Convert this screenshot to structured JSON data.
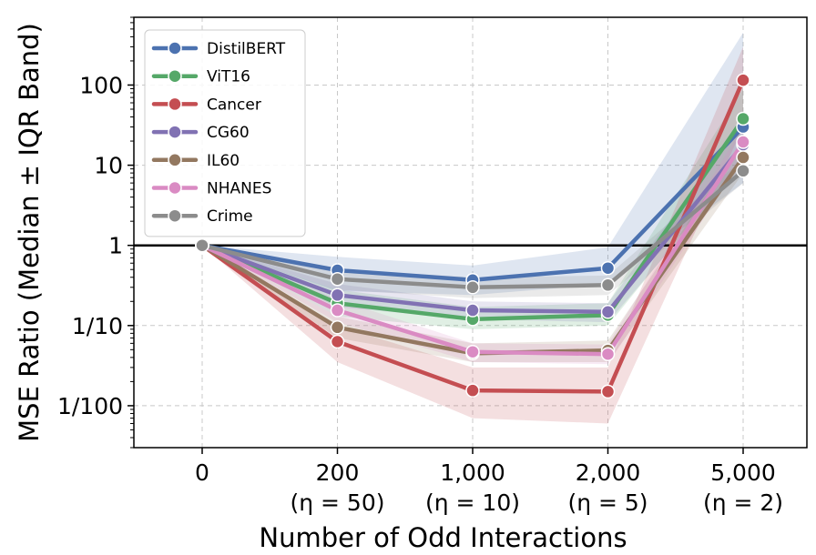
{
  "chart_data": {
    "type": "line",
    "xlabel": "Number of Odd Interactions",
    "ylabel": "MSE Ratio (Median ± IQR Band)",
    "y_scale": "log10",
    "ylim": [
      0.003,
      700
    ],
    "grid": true,
    "legend_position": "top-left",
    "reference_line": 1,
    "categories": [
      {
        "label": "0",
        "sublabel": ""
      },
      {
        "label": "200",
        "sublabel": "(η = 50)"
      },
      {
        "label": "1,000",
        "sublabel": "(η = 10)"
      },
      {
        "label": "2,000",
        "sublabel": "(η = 5)"
      },
      {
        "label": "5,000",
        "sublabel": "(η = 2)"
      }
    ],
    "y_ticks": [
      {
        "value": 100,
        "label": "100"
      },
      {
        "value": 10,
        "label": "10"
      },
      {
        "value": 1,
        "label": "1"
      },
      {
        "value": 0.1,
        "label": "1/10"
      },
      {
        "value": 0.01,
        "label": "1/100"
      }
    ],
    "series": [
      {
        "name": "DistilBERT",
        "color": "#4C72B0",
        "values": [
          1,
          0.49,
          0.37,
          0.52,
          30
        ],
        "lower": [
          1,
          0.27,
          0.24,
          0.33,
          6
        ],
        "upper": [
          1,
          0.72,
          0.56,
          0.95,
          450
        ]
      },
      {
        "name": "ViT16",
        "color": "#55A868",
        "values": [
          1,
          0.19,
          0.12,
          0.135,
          38
        ],
        "lower": [
          1,
          0.13,
          0.09,
          0.1,
          12
        ],
        "upper": [
          1,
          0.28,
          0.17,
          0.19,
          90
        ]
      },
      {
        "name": "Cancer",
        "color": "#C44E52",
        "values": [
          1,
          0.063,
          0.0155,
          0.015,
          115
        ],
        "lower": [
          1,
          0.035,
          0.007,
          0.006,
          30
        ],
        "upper": [
          1,
          0.1,
          0.03,
          0.03,
          300
        ]
      },
      {
        "name": "CG60",
        "color": "#8172B3",
        "values": [
          1,
          0.24,
          0.155,
          0.148,
          18
        ],
        "lower": [
          1,
          0.17,
          0.12,
          0.11,
          10
        ],
        "upper": [
          1,
          0.33,
          0.2,
          0.19,
          35
        ]
      },
      {
        "name": "IL60",
        "color": "#937860",
        "values": [
          1,
          0.095,
          0.045,
          0.049,
          12.5
        ],
        "lower": [
          1,
          0.07,
          0.035,
          0.035,
          8
        ],
        "upper": [
          1,
          0.13,
          0.06,
          0.065,
          20
        ]
      },
      {
        "name": "NHANES",
        "color": "#DA8BC3",
        "values": [
          1,
          0.155,
          0.047,
          0.044,
          19.5
        ],
        "lower": [
          1,
          0.11,
          0.035,
          0.033,
          12
        ],
        "upper": [
          1,
          0.21,
          0.06,
          0.058,
          30
        ]
      },
      {
        "name": "Crime",
        "color": "#8C8C8C",
        "values": [
          1,
          0.38,
          0.3,
          0.32,
          8.5
        ],
        "lower": [
          1,
          0.28,
          0.22,
          0.24,
          6
        ],
        "upper": [
          1,
          0.5,
          0.4,
          0.42,
          12
        ]
      }
    ]
  }
}
